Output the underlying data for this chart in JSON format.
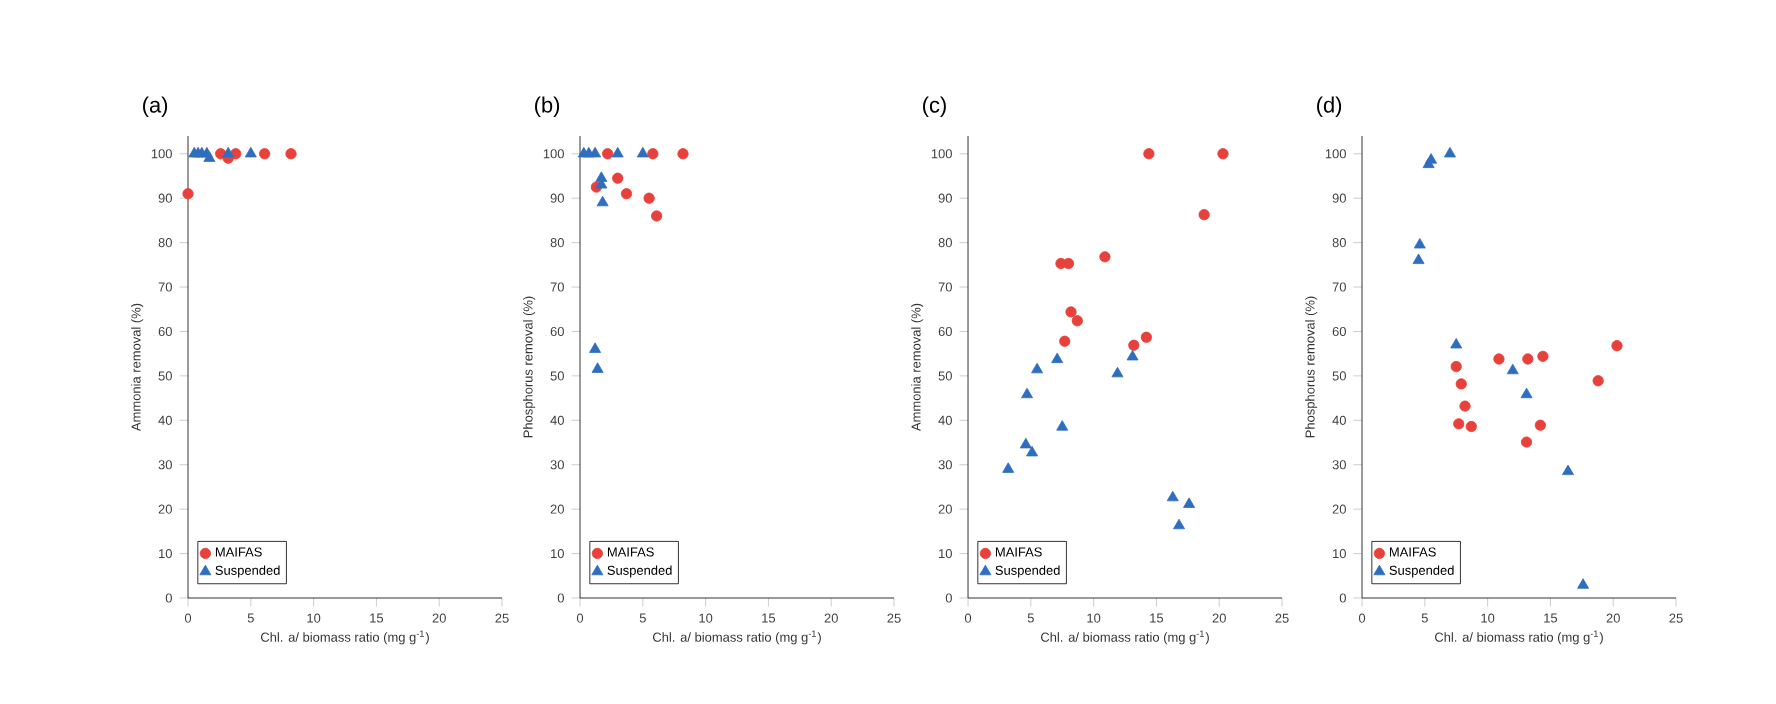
{
  "chart_data": [
    {
      "type": "scatter",
      "title": "(a)",
      "xlabel": "Chl. a/ biomass ratio (mg g$^{-1}$)",
      "ylabel": "Ammonia removal (%)",
      "xlim": [
        0,
        25
      ],
      "ylim": [
        0,
        104
      ],
      "xticks": [
        0,
        5,
        10,
        15,
        20,
        25
      ],
      "yticks": [
        0,
        10,
        20,
        30,
        40,
        50,
        60,
        70,
        80,
        90,
        100
      ],
      "legend": "bottom left",
      "series": [
        {
          "name": "MAIFAS",
          "color": "#e8413c",
          "marker": "circle",
          "x": [
            0,
            2.2,
            2.6,
            3.2,
            3.8,
            5.8,
            6.1,
            8.2
          ],
          "values": [
            91,
            null,
            100,
            99,
            100,
            null,
            100,
            100
          ]
        },
        {
          "name": "Suspended",
          "color": "#2f6ebf",
          "marker": "triangle",
          "x": [
            0.5,
            0.8,
            1.1,
            1.3,
            1.5,
            1.7,
            3.2,
            5.0
          ],
          "values": [
            100,
            100,
            100,
            null,
            100,
            99,
            100,
            100
          ]
        }
      ]
    },
    {
      "type": "scatter",
      "title": "(b)",
      "xlabel": "Chl. a/ biomass ratio (mg g$^{-1}$)",
      "ylabel": "Phosphorus removal (%)",
      "xlim": [
        0,
        25
      ],
      "ylim": [
        0,
        104
      ],
      "xticks": [
        0,
        5,
        10,
        15,
        20,
        25
      ],
      "yticks": [
        0,
        10,
        20,
        30,
        40,
        50,
        60,
        70,
        80,
        90,
        100
      ],
      "legend": "bottom left",
      "series": [
        {
          "name": "MAIFAS",
          "color": "#e8413c",
          "marker": "circle",
          "x": [
            1.3,
            2.2,
            3.0,
            3.7,
            5.5,
            5.8,
            6.1,
            8.2
          ],
          "values": [
            92.5,
            100,
            94.5,
            91,
            90,
            100,
            86,
            100
          ]
        },
        {
          "name": "Suspended",
          "color": "#2f6ebf",
          "marker": "triangle",
          "x": [
            0.3,
            0.7,
            1.2,
            1.7,
            1.8,
            1.7,
            1.2,
            1.4,
            3.0,
            5.0
          ],
          "values": [
            100,
            100,
            100,
            94.5,
            89,
            93,
            56,
            51.5,
            100,
            100
          ]
        }
      ]
    },
    {
      "type": "scatter",
      "title": "(c)",
      "xlabel": "Chl. a/ biomass ratio (mg g$^{-1}$)",
      "ylabel": "Ammonia removal (%)",
      "xlim": [
        0,
        25
      ],
      "ylim": [
        0,
        104
      ],
      "xticks": [
        0,
        5,
        10,
        15,
        20,
        25
      ],
      "yticks": [
        0,
        10,
        20,
        30,
        40,
        50,
        60,
        70,
        80,
        90,
        100
      ],
      "legend": "bottom left",
      "series": [
        {
          "name": "MAIFAS",
          "color": "#e8413c",
          "marker": "circle",
          "x": [
            14.4,
            20.3,
            18.8,
            7.4,
            8.0,
            10.9,
            8.2,
            8.7,
            7.7,
            13.2,
            14.2
          ],
          "values": [
            100,
            100,
            86.3,
            75.3,
            75.3,
            76.8,
            64.4,
            62.4,
            57.8,
            56.9,
            58.7
          ]
        },
        {
          "name": "Suspended",
          "color": "#2f6ebf",
          "marker": "triangle",
          "x": [
            3.2,
            4.6,
            5.1,
            4.7,
            5.5,
            7.1,
            7.5,
            11.9,
            13.1,
            16.3,
            16.8,
            17.6
          ],
          "values": [
            29,
            34.5,
            32.7,
            45.8,
            51.4,
            53.7,
            38.5,
            50.5,
            54.3,
            22.6,
            16.3,
            21.1
          ]
        }
      ]
    },
    {
      "type": "scatter",
      "title": "(d)",
      "xlabel": "Chl. a/ biomass ratio (mg g$^{-1}$)",
      "ylabel": "Phosphorus removal (%)",
      "xlim": [
        0,
        25
      ],
      "ylim": [
        0,
        104
      ],
      "xticks": [
        0,
        5,
        10,
        15,
        20,
        25
      ],
      "yticks": [
        0,
        10,
        20,
        30,
        40,
        50,
        60,
        70,
        80,
        90,
        100
      ],
      "legend": "bottom left",
      "series": [
        {
          "name": "MAIFAS",
          "color": "#e8413c",
          "marker": "circle",
          "x": [
            7.5,
            7.9,
            8.2,
            7.7,
            8.7,
            10.9,
            13.2,
            14.4,
            14.2,
            13.1,
            18.8,
            20.3
          ],
          "values": [
            52.1,
            48.2,
            43.2,
            39.2,
            38.6,
            53.8,
            53.8,
            54.4,
            38.9,
            35.1,
            48.9,
            56.8
          ]
        },
        {
          "name": "Suspended",
          "color": "#2f6ebf",
          "marker": "triangle",
          "x": [
            5.5,
            5.3,
            7.0,
            4.6,
            4.5,
            7.5,
            12.0,
            13.1,
            16.4,
            17.6
          ],
          "values": [
            98.6,
            97.6,
            100,
            79.5,
            76,
            57,
            51.2,
            45.8,
            28.5,
            2.9
          ]
        }
      ]
    }
  ]
}
